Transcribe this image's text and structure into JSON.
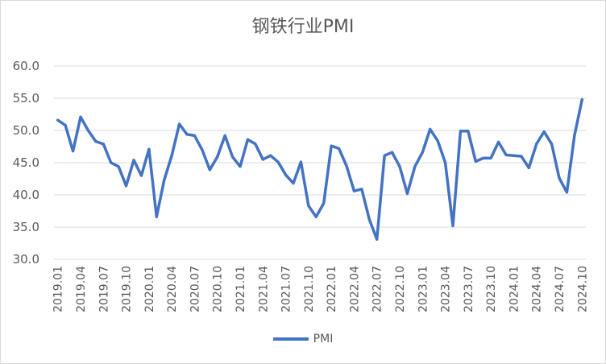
{
  "chart_data": {
    "type": "line",
    "title": "钢铁行业PMI",
    "xlabel": "",
    "ylabel": "",
    "ylim": [
      30,
      60
    ],
    "yticks": [
      "30.0",
      "35.0",
      "40.0",
      "45.0",
      "50.0",
      "55.0",
      "60.0"
    ],
    "grid": true,
    "legend_position": "bottom",
    "color": "#4472c4",
    "x_tick_labels": [
      "2019.01",
      "2019.04",
      "2019.07",
      "2019.10",
      "2020.01",
      "2020.04",
      "2020.07",
      "2020.10",
      "2021.01",
      "2021.04",
      "2021.07",
      "2021.10",
      "2022.01",
      "2022.04",
      "2022.07",
      "2022.10",
      "2023.01",
      "2023.04",
      "2023.07",
      "2023.10",
      "2024.01",
      "2024.04",
      "2024.07",
      "2024.10"
    ],
    "x": [
      "2019.01",
      "2019.02",
      "2019.03",
      "2019.04",
      "2019.05",
      "2019.06",
      "2019.07",
      "2019.08",
      "2019.09",
      "2019.10",
      "2019.11",
      "2019.12",
      "2020.01",
      "2020.02",
      "2020.03",
      "2020.04",
      "2020.05",
      "2020.06",
      "2020.07",
      "2020.08",
      "2020.09",
      "2020.10",
      "2020.11",
      "2020.12",
      "2021.01",
      "2021.02",
      "2021.03",
      "2021.04",
      "2021.05",
      "2021.06",
      "2021.07",
      "2021.08",
      "2021.09",
      "2021.10",
      "2021.11",
      "2021.12",
      "2022.01",
      "2022.02",
      "2022.03",
      "2022.04",
      "2022.05",
      "2022.06",
      "2022.07",
      "2022.08",
      "2022.09",
      "2022.10",
      "2022.11",
      "2022.12",
      "2023.01",
      "2023.02",
      "2023.03",
      "2023.04",
      "2023.05",
      "2023.06",
      "2023.07",
      "2023.08",
      "2023.09",
      "2023.10",
      "2023.11",
      "2023.12",
      "2024.01",
      "2024.02",
      "2024.03",
      "2024.04",
      "2024.05",
      "2024.06",
      "2024.07",
      "2024.08",
      "2024.09",
      "2024.10"
    ],
    "series": [
      {
        "name": "PMI",
        "values": [
          51.6,
          50.8,
          46.8,
          52.1,
          50.0,
          48.3,
          47.9,
          45.0,
          44.4,
          41.4,
          45.4,
          43.0,
          47.1,
          36.6,
          42.3,
          46.1,
          51.0,
          49.4,
          49.2,
          47.0,
          43.9,
          45.9,
          49.2,
          45.9,
          44.4,
          48.6,
          47.9,
          45.5,
          46.1,
          45.1,
          43.1,
          41.8,
          45.1,
          38.3,
          36.6,
          38.7,
          47.6,
          47.2,
          44.5,
          40.6,
          40.9,
          36.2,
          33.1,
          46.1,
          46.6,
          44.4,
          40.2,
          44.4,
          46.6,
          50.2,
          48.4,
          45.0,
          35.2,
          49.9,
          49.9,
          45.2,
          45.7,
          45.7,
          48.2,
          46.2,
          46.1,
          46.0,
          44.2,
          47.9,
          49.8,
          47.9,
          42.6,
          40.4,
          49.2,
          54.8
        ]
      }
    ]
  }
}
